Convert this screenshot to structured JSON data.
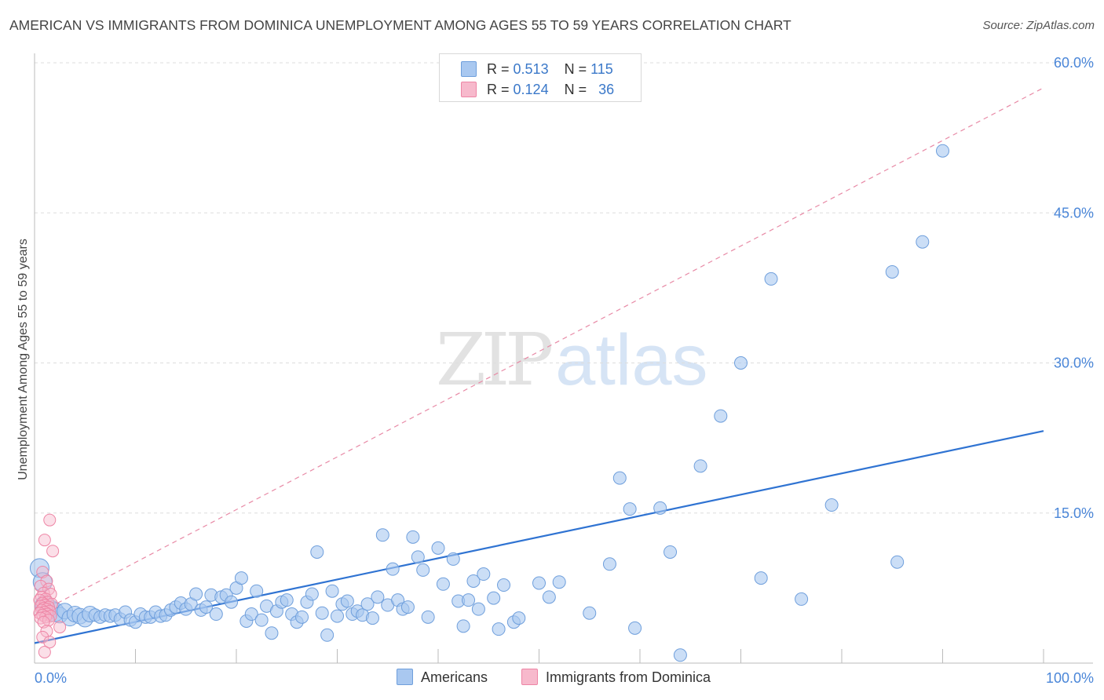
{
  "header": {
    "title": "AMERICAN VS IMMIGRANTS FROM DOMINICA UNEMPLOYMENT AMONG AGES 55 TO 59 YEARS CORRELATION CHART",
    "source": "Source: ZipAtlas.com"
  },
  "watermark": {
    "part1": "ZIP",
    "part2": "atlas"
  },
  "legend_top": {
    "rows": [
      {
        "r_label": "R =",
        "r_value": "0.513",
        "n_label": "N =",
        "n_value": "115"
      },
      {
        "r_label": "R =",
        "r_value": "0.124",
        "n_label": "N =",
        "n_value": "36"
      }
    ]
  },
  "legend_bottom": {
    "americans": "Americans",
    "dominica": "Immigrants from Dominica"
  },
  "colors": {
    "american_fill": "#a9c8f0",
    "american_stroke": "#6f9fdc",
    "american_line": "#2f73d2",
    "dominica_fill": "#f7b9cc",
    "dominica_stroke": "#ee85a5",
    "dominica_line": "#e88aa6",
    "tick_label": "#4a86d8",
    "grid": "#dddddd"
  },
  "chart_data": {
    "type": "scatter",
    "title": "AMERICAN VS IMMIGRANTS FROM DOMINICA UNEMPLOYMENT AMONG AGES 55 TO 59 YEARS CORRELATION CHART",
    "xlabel": "",
    "ylabel": "Unemployment Among Ages 55 to 59 years",
    "xlim": [
      0,
      100
    ],
    "ylim": [
      0,
      60
    ],
    "x_tick_labels": [
      {
        "value": 0,
        "label": "0.0%"
      },
      {
        "value": 100,
        "label": "100.0%"
      }
    ],
    "y_tick_labels": [
      {
        "value": 15,
        "label": "15.0%"
      },
      {
        "value": 30,
        "label": "30.0%"
      },
      {
        "value": 45,
        "label": "45.0%"
      },
      {
        "value": 60,
        "label": "60.0%"
      }
    ],
    "grid": true,
    "legend_position": "bottom-center",
    "series": [
      {
        "name": "Americans",
        "r": 0.513,
        "n": 115,
        "trend": {
          "x": [
            0,
            100
          ],
          "y": [
            2.0,
            23.2
          ],
          "style": "solid"
        },
        "points": [
          [
            0.5,
            9.5
          ],
          [
            0.8,
            8.1
          ],
          [
            1.0,
            5.8
          ],
          [
            1.5,
            5.4
          ],
          [
            2.0,
            5.1
          ],
          [
            2.5,
            4.8
          ],
          [
            3.0,
            5.2
          ],
          [
            3.5,
            4.5
          ],
          [
            4.0,
            4.9
          ],
          [
            4.5,
            4.7
          ],
          [
            5.0,
            4.4
          ],
          [
            5.5,
            4.9
          ],
          [
            6.0,
            4.8
          ],
          [
            6.5,
            4.6
          ],
          [
            7.0,
            4.8
          ],
          [
            7.5,
            4.7
          ],
          [
            8.0,
            4.8
          ],
          [
            8.5,
            4.4
          ],
          [
            9.0,
            5.1
          ],
          [
            9.5,
            4.3
          ],
          [
            10.0,
            4.1
          ],
          [
            10.5,
            4.9
          ],
          [
            11.0,
            4.6
          ],
          [
            11.5,
            4.6
          ],
          [
            12.0,
            5.1
          ],
          [
            12.5,
            4.7
          ],
          [
            13.0,
            4.8
          ],
          [
            13.5,
            5.3
          ],
          [
            14.0,
            5.6
          ],
          [
            14.5,
            6.0
          ],
          [
            15.0,
            5.4
          ],
          [
            15.5,
            5.9
          ],
          [
            16.0,
            6.9
          ],
          [
            16.5,
            5.3
          ],
          [
            17.0,
            5.6
          ],
          [
            17.5,
            6.8
          ],
          [
            18.0,
            4.9
          ],
          [
            18.5,
            6.6
          ],
          [
            19.0,
            6.8
          ],
          [
            19.5,
            6.1
          ],
          [
            20.0,
            7.5
          ],
          [
            20.5,
            8.5
          ],
          [
            21.0,
            4.2
          ],
          [
            21.5,
            4.9
          ],
          [
            22.0,
            7.2
          ],
          [
            22.5,
            4.3
          ],
          [
            23.0,
            5.7
          ],
          [
            23.5,
            3.0
          ],
          [
            24.0,
            5.2
          ],
          [
            24.5,
            6.1
          ],
          [
            25.0,
            6.3
          ],
          [
            25.5,
            4.9
          ],
          [
            26.0,
            4.1
          ],
          [
            26.5,
            4.6
          ],
          [
            27.0,
            6.1
          ],
          [
            27.5,
            6.9
          ],
          [
            28.0,
            11.1
          ],
          [
            28.5,
            5.0
          ],
          [
            29.0,
            2.8
          ],
          [
            29.5,
            7.2
          ],
          [
            30.0,
            4.7
          ],
          [
            30.5,
            5.9
          ],
          [
            31.0,
            6.2
          ],
          [
            31.5,
            4.9
          ],
          [
            32.0,
            5.2
          ],
          [
            32.5,
            4.8
          ],
          [
            33.0,
            5.9
          ],
          [
            33.5,
            4.5
          ],
          [
            34.0,
            6.6
          ],
          [
            34.5,
            12.8
          ],
          [
            35.0,
            5.8
          ],
          [
            35.5,
            9.4
          ],
          [
            36.0,
            6.3
          ],
          [
            36.5,
            5.4
          ],
          [
            37.0,
            5.6
          ],
          [
            37.5,
            12.6
          ],
          [
            38.0,
            10.6
          ],
          [
            38.5,
            9.3
          ],
          [
            39.0,
            4.6
          ],
          [
            40.0,
            11.5
          ],
          [
            40.5,
            7.9
          ],
          [
            41.5,
            10.4
          ],
          [
            42.0,
            6.2
          ],
          [
            42.5,
            3.7
          ],
          [
            43.0,
            6.3
          ],
          [
            43.5,
            8.2
          ],
          [
            44.0,
            5.4
          ],
          [
            44.5,
            8.9
          ],
          [
            45.5,
            6.5
          ],
          [
            46.0,
            3.4
          ],
          [
            46.5,
            7.8
          ],
          [
            47.5,
            4.1
          ],
          [
            48.0,
            4.5
          ],
          [
            50.0,
            8.0
          ],
          [
            51.0,
            6.6
          ],
          [
            52.0,
            8.1
          ],
          [
            55.0,
            5.0
          ],
          [
            57.0,
            9.9
          ],
          [
            58.0,
            18.5
          ],
          [
            59.0,
            15.4
          ],
          [
            59.5,
            3.5
          ],
          [
            62.0,
            15.5
          ],
          [
            63.0,
            11.1
          ],
          [
            64.0,
            0.8
          ],
          [
            66.0,
            19.7
          ],
          [
            68.0,
            24.7
          ],
          [
            70.0,
            30.0
          ],
          [
            72.0,
            8.5
          ],
          [
            73.0,
            38.4
          ],
          [
            76.0,
            6.4
          ],
          [
            79.0,
            15.8
          ],
          [
            85.0,
            39.1
          ],
          [
            88.0,
            42.1
          ],
          [
            90.0,
            51.2
          ],
          [
            85.5,
            10.1
          ]
        ]
      },
      {
        "name": "Immigrants from Dominica",
        "r": 0.124,
        "n": 36,
        "trend": {
          "x": [
            0,
            100
          ],
          "y": [
            4.8,
            57.5
          ],
          "style": "dashed"
        },
        "points": [
          [
            1.5,
            14.3
          ],
          [
            1.0,
            12.3
          ],
          [
            1.8,
            11.2
          ],
          [
            0.8,
            9.1
          ],
          [
            1.2,
            8.2
          ],
          [
            0.6,
            7.7
          ],
          [
            1.4,
            7.4
          ],
          [
            0.9,
            7.0
          ],
          [
            1.6,
            6.9
          ],
          [
            0.7,
            6.6
          ],
          [
            1.1,
            6.4
          ],
          [
            0.5,
            6.3
          ],
          [
            1.3,
            6.1
          ],
          [
            0.8,
            6.0
          ],
          [
            1.7,
            5.9
          ],
          [
            1.0,
            5.8
          ],
          [
            0.6,
            5.7
          ],
          [
            1.4,
            5.6
          ],
          [
            0.9,
            5.5
          ],
          [
            1.2,
            5.4
          ],
          [
            0.7,
            5.3
          ],
          [
            1.5,
            5.2
          ],
          [
            1.0,
            5.1
          ],
          [
            0.5,
            5.0
          ],
          [
            1.3,
            4.9
          ],
          [
            0.8,
            4.8
          ],
          [
            1.6,
            4.7
          ],
          [
            1.1,
            4.6
          ],
          [
            0.6,
            4.5
          ],
          [
            1.4,
            4.3
          ],
          [
            0.9,
            4.1
          ],
          [
            2.5,
            3.6
          ],
          [
            1.2,
            3.2
          ],
          [
            0.8,
            2.6
          ],
          [
            1.5,
            2.1
          ],
          [
            1.0,
            1.1
          ]
        ]
      }
    ]
  }
}
